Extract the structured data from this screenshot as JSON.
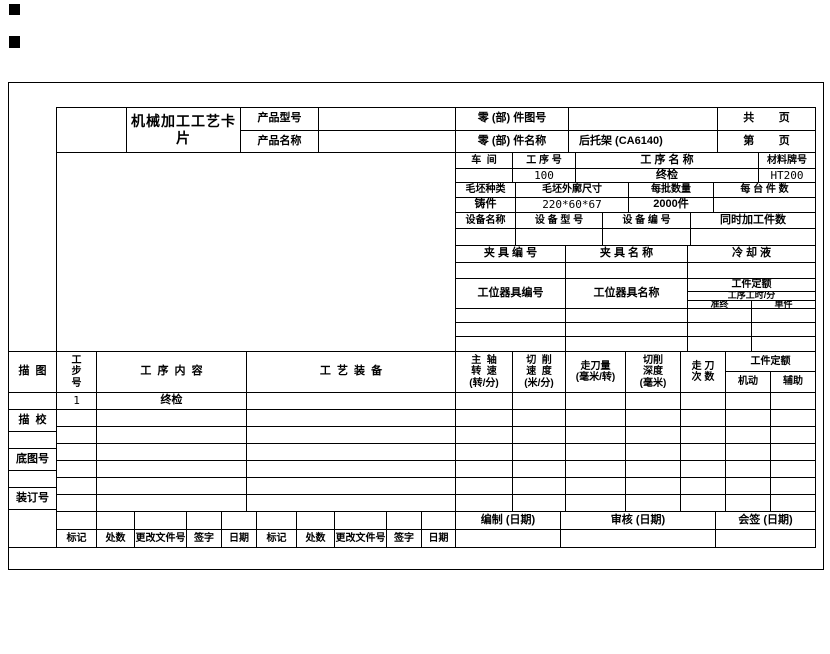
{
  "title_block": {
    "title": "机械加工工艺卡片",
    "product_model_label": "产品型号",
    "product_name_label": "产品名称",
    "part_no_label": "零 (部) 件图号",
    "part_name_label": "零 (部) 件名称",
    "part_name_value": "后托架 (CA6140)",
    "total_pages_label": "共        页",
    "page_no_label": "第        页"
  },
  "process_info": {
    "workshop_label": "车  间",
    "process_no_label": "工 序 号",
    "process_name_label": "工 序 名 称",
    "material_label": "材料牌号",
    "process_no_value": "100",
    "process_name_value": "终检",
    "material_value": "HT200",
    "blank_type_label": "毛坯种类",
    "blank_size_label": "毛坯外廓尺寸",
    "batch_qty_label": "每批数量",
    "per_machine_label": "每 台 件 数",
    "blank_type_value": "铸件",
    "blank_size_value": "220*60*67",
    "batch_qty_value": "2000件",
    "equipment_name_label": "设备名称",
    "equipment_model_label": "设 备 型 号",
    "equipment_no_label": "设 备 编 号",
    "simultaneous_parts_label": "同时加工件数",
    "fixture_no_label": "夹 具 编 号",
    "fixture_name_label": "夹 具 名 称",
    "coolant_label": "冷 却 液",
    "tooling_no_label": "工位器具编号",
    "tooling_name_label": "工位器具名称",
    "quota_label": "工件定额",
    "quota_time_label": "工序工时/分",
    "quota_prep_label": "准终",
    "quota_unit_label": "单件"
  },
  "main_table": {
    "step_no_label": "工\n步\n号",
    "content_label": "工  序  内  容",
    "equipment_label": "工  艺  装  备",
    "spindle_speed_label": "主  轴\n转  速\n(转/分)",
    "cutting_speed_label": "切  削\n速  度\n(米/分)",
    "feed_label": "走刀量\n(毫米/转)",
    "cut_depth_label": "切削\n深度\n(毫米)",
    "passes_label": "走 刀\n次 数",
    "quota_label": "工件定额",
    "quota_machine_label": "机动",
    "quota_aux_label": "辅助",
    "row1": {
      "step_no": "1",
      "content": "终检"
    }
  },
  "side_labels": {
    "tracing": "描  图",
    "tracing_check": "描  校",
    "base_drawing_no": "底图号",
    "binding_no": "装订号"
  },
  "bottom": {
    "prepared_label": "编制 (日期)",
    "audited_label": "审核 (日期)",
    "countersign_label": "会签 (日期)",
    "rev_labels": [
      "标记",
      "处数",
      "更改文件号",
      "签字",
      "日期"
    ]
  }
}
